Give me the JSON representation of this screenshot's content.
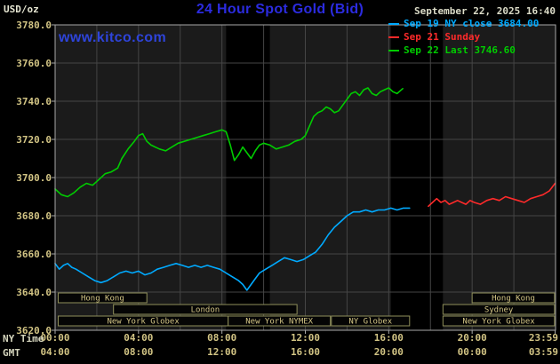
{
  "header": {
    "units_label": "USD/oz",
    "title": "24 Hour Spot Gold (Bid)",
    "datetime": "September 22, 2025 16:40",
    "watermark": "www.kitco.com"
  },
  "legend": [
    {
      "label": "Sep 19 NY close 3684.00",
      "color": "#00aaff"
    },
    {
      "label": "Sep 21 Sunday",
      "color": "#ff2a2a"
    },
    {
      "label": "Sep 22 Last 3746.60",
      "color": "#00cc00"
    }
  ],
  "axes": {
    "x_row1_label": "NY Time",
    "x_row2_label": "GMT",
    "y_ticks": [
      "3780.0",
      "3760.0",
      "3740.0",
      "3720.0",
      "3700.0",
      "3680.0",
      "3660.0",
      "3640.0",
      "3620.0"
    ],
    "x_tick_hours": [
      0,
      4,
      8,
      12,
      16,
      20,
      23.98
    ],
    "x_ticks_ny": [
      "00:00",
      "04:00",
      "08:00",
      "12:00",
      "16:00",
      "20:00",
      "23:59"
    ],
    "x_ticks_gmt": [
      "04:00",
      "08:00",
      "12:00",
      "16:00",
      "20:00",
      "00:00",
      "03:59"
    ]
  },
  "colors": {
    "plot_bg": "#1b1b1b",
    "closed_band": "#000000",
    "grid": "#454545",
    "frame": "#a8a8a8",
    "tan_text": "#d2c484",
    "tan_border": "#8f8f5a",
    "session_fill": "#050505"
  },
  "chart_data": {
    "type": "line",
    "title": "24 Hour Spot Gold (Bid)",
    "ylabel": "USD/oz",
    "ylim": [
      3620,
      3780
    ],
    "xlim_hours": [
      0,
      24
    ],
    "grid": true,
    "legend_position": "top-right",
    "closed_bands": [
      [
        8.2,
        10.3
      ],
      [
        16.1,
        18.6
      ]
    ],
    "series": [
      {
        "name": "Sep 19 NY close",
        "color": "#00aaff",
        "points": [
          [
            0,
            3655
          ],
          [
            0.2,
            3652
          ],
          [
            0.4,
            3654
          ],
          [
            0.6,
            3655
          ],
          [
            0.8,
            3653
          ],
          [
            1.0,
            3652
          ],
          [
            1.3,
            3650
          ],
          [
            1.6,
            3648
          ],
          [
            1.9,
            3646
          ],
          [
            2.2,
            3645
          ],
          [
            2.5,
            3646
          ],
          [
            2.8,
            3648
          ],
          [
            3.1,
            3650
          ],
          [
            3.4,
            3651
          ],
          [
            3.7,
            3650
          ],
          [
            4.0,
            3651
          ],
          [
            4.3,
            3649
          ],
          [
            4.6,
            3650
          ],
          [
            4.9,
            3652
          ],
          [
            5.2,
            3653
          ],
          [
            5.5,
            3654
          ],
          [
            5.8,
            3655
          ],
          [
            6.1,
            3654
          ],
          [
            6.4,
            3653
          ],
          [
            6.7,
            3654
          ],
          [
            7.0,
            3653
          ],
          [
            7.3,
            3654
          ],
          [
            7.6,
            3653
          ],
          [
            7.9,
            3652
          ],
          [
            8.2,
            3650
          ],
          [
            8.5,
            3648
          ],
          [
            8.8,
            3646
          ],
          [
            9.0,
            3644
          ],
          [
            9.2,
            3641
          ],
          [
            9.4,
            3644
          ],
          [
            9.6,
            3647
          ],
          [
            9.8,
            3650
          ],
          [
            10.1,
            3652
          ],
          [
            10.4,
            3654
          ],
          [
            10.7,
            3656
          ],
          [
            11.0,
            3658
          ],
          [
            11.3,
            3657
          ],
          [
            11.6,
            3656
          ],
          [
            11.9,
            3657
          ],
          [
            12.2,
            3659
          ],
          [
            12.5,
            3661
          ],
          [
            12.8,
            3665
          ],
          [
            13.1,
            3670
          ],
          [
            13.4,
            3674
          ],
          [
            13.7,
            3677
          ],
          [
            14.0,
            3680
          ],
          [
            14.3,
            3682
          ],
          [
            14.6,
            3682
          ],
          [
            14.9,
            3683
          ],
          [
            15.2,
            3682
          ],
          [
            15.5,
            3683
          ],
          [
            15.8,
            3683
          ],
          [
            16.1,
            3684
          ],
          [
            16.4,
            3683
          ],
          [
            16.7,
            3684
          ],
          [
            17.0,
            3684
          ]
        ]
      },
      {
        "name": "Sep 21 Sunday",
        "color": "#ff2a2a",
        "points": [
          [
            17.9,
            3685
          ],
          [
            18.1,
            3687
          ],
          [
            18.3,
            3689
          ],
          [
            18.5,
            3687
          ],
          [
            18.7,
            3688
          ],
          [
            18.9,
            3686
          ],
          [
            19.1,
            3687
          ],
          [
            19.3,
            3688
          ],
          [
            19.5,
            3687
          ],
          [
            19.7,
            3686
          ],
          [
            19.9,
            3688
          ],
          [
            20.1,
            3687
          ],
          [
            20.4,
            3686
          ],
          [
            20.7,
            3688
          ],
          [
            21.0,
            3689
          ],
          [
            21.3,
            3688
          ],
          [
            21.6,
            3690
          ],
          [
            21.9,
            3689
          ],
          [
            22.2,
            3688
          ],
          [
            22.5,
            3687
          ],
          [
            22.8,
            3689
          ],
          [
            23.1,
            3690
          ],
          [
            23.4,
            3691
          ],
          [
            23.7,
            3693
          ],
          [
            23.98,
            3697
          ]
        ]
      },
      {
        "name": "Sep 22 Last",
        "color": "#00cc00",
        "points": [
          [
            0,
            3694
          ],
          [
            0.3,
            3691
          ],
          [
            0.6,
            3690
          ],
          [
            0.9,
            3692
          ],
          [
            1.2,
            3695
          ],
          [
            1.5,
            3697
          ],
          [
            1.8,
            3696
          ],
          [
            2.1,
            3699
          ],
          [
            2.4,
            3702
          ],
          [
            2.7,
            3703
          ],
          [
            3.0,
            3705
          ],
          [
            3.2,
            3710
          ],
          [
            3.5,
            3715
          ],
          [
            3.8,
            3719
          ],
          [
            4.0,
            3722
          ],
          [
            4.2,
            3723
          ],
          [
            4.4,
            3719
          ],
          [
            4.6,
            3717
          ],
          [
            4.8,
            3716
          ],
          [
            5.0,
            3715
          ],
          [
            5.3,
            3714
          ],
          [
            5.6,
            3716
          ],
          [
            5.9,
            3718
          ],
          [
            6.2,
            3719
          ],
          [
            6.5,
            3720
          ],
          [
            6.8,
            3721
          ],
          [
            7.1,
            3722
          ],
          [
            7.4,
            3723
          ],
          [
            7.7,
            3724
          ],
          [
            8.0,
            3725
          ],
          [
            8.2,
            3724
          ],
          [
            8.4,
            3717
          ],
          [
            8.6,
            3709
          ],
          [
            8.8,
            3712
          ],
          [
            9.0,
            3716
          ],
          [
            9.2,
            3713
          ],
          [
            9.4,
            3710
          ],
          [
            9.6,
            3714
          ],
          [
            9.8,
            3717
          ],
          [
            10.0,
            3718
          ],
          [
            10.3,
            3717
          ],
          [
            10.6,
            3715
          ],
          [
            10.9,
            3716
          ],
          [
            11.2,
            3717
          ],
          [
            11.5,
            3719
          ],
          [
            11.8,
            3720
          ],
          [
            12.0,
            3722
          ],
          [
            12.2,
            3727
          ],
          [
            12.4,
            3732
          ],
          [
            12.6,
            3734
          ],
          [
            12.8,
            3735
          ],
          [
            13.0,
            3737
          ],
          [
            13.2,
            3736
          ],
          [
            13.4,
            3734
          ],
          [
            13.6,
            3735
          ],
          [
            13.8,
            3738
          ],
          [
            14.0,
            3741
          ],
          [
            14.2,
            3744
          ],
          [
            14.4,
            3745
          ],
          [
            14.6,
            3743
          ],
          [
            14.8,
            3746
          ],
          [
            15.0,
            3747
          ],
          [
            15.2,
            3744
          ],
          [
            15.4,
            3743
          ],
          [
            15.6,
            3745
          ],
          [
            15.8,
            3746
          ],
          [
            16.0,
            3747
          ],
          [
            16.2,
            3745
          ],
          [
            16.4,
            3744
          ],
          [
            16.67,
            3746.6
          ]
        ]
      }
    ],
    "sessions": [
      {
        "row": 0,
        "label": "Hong Kong",
        "start": 0.15,
        "end": 4.4
      },
      {
        "row": 0,
        "label": "Hong Kong",
        "start": 20.0,
        "end": 23.95
      },
      {
        "row": 1,
        "label": "London",
        "start": 2.8,
        "end": 11.6
      },
      {
        "row": 1,
        "label": "Sydney",
        "start": 18.6,
        "end": 23.95
      },
      {
        "row": 2,
        "label": "New York Globex",
        "start": 0.15,
        "end": 8.3
      },
      {
        "row": 2,
        "label": "New York NYMEX",
        "start": 8.3,
        "end": 13.2
      },
      {
        "row": 2,
        "label": "NY Globex",
        "start": 13.25,
        "end": 17.0
      },
      {
        "row": 2,
        "label": "New York Globex",
        "start": 18.6,
        "end": 23.95
      }
    ]
  }
}
